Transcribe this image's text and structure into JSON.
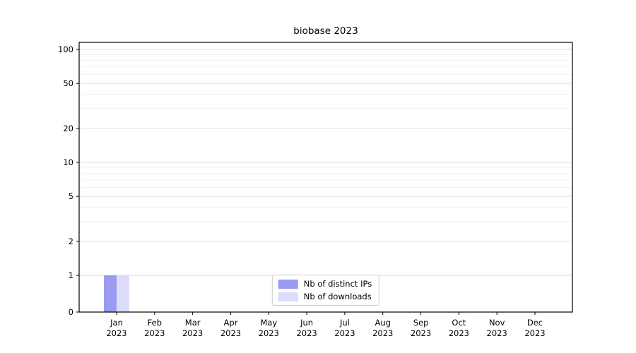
{
  "chart_data": {
    "type": "bar",
    "title": "biobase 2023",
    "categories": [
      "Jan",
      "Feb",
      "Mar",
      "Apr",
      "May",
      "Jun",
      "Jul",
      "Aug",
      "Sep",
      "Oct",
      "Nov",
      "Dec"
    ],
    "xtick_year": "2023",
    "series": [
      {
        "name": "Nb of distinct IPs",
        "color": "#9a9af0",
        "values": [
          1,
          0,
          0,
          0,
          0,
          0,
          0,
          0,
          0,
          0,
          0,
          0
        ]
      },
      {
        "name": "Nb of downloads",
        "color": "#dcdcfa",
        "values": [
          1,
          0,
          0,
          0,
          0,
          0,
          0,
          0,
          0,
          0,
          0,
          0
        ]
      }
    ],
    "yscale": "symlog",
    "yticks": [
      0,
      1,
      2,
      5,
      10,
      20,
      50,
      100
    ],
    "minor_yticks": [
      3,
      4,
      6,
      7,
      8,
      9,
      30,
      40,
      60,
      70,
      80,
      90
    ],
    "ylim": [
      0,
      100
    ],
    "xlabel": "",
    "ylabel": "",
    "grid": true,
    "legend_position": "lower center"
  }
}
